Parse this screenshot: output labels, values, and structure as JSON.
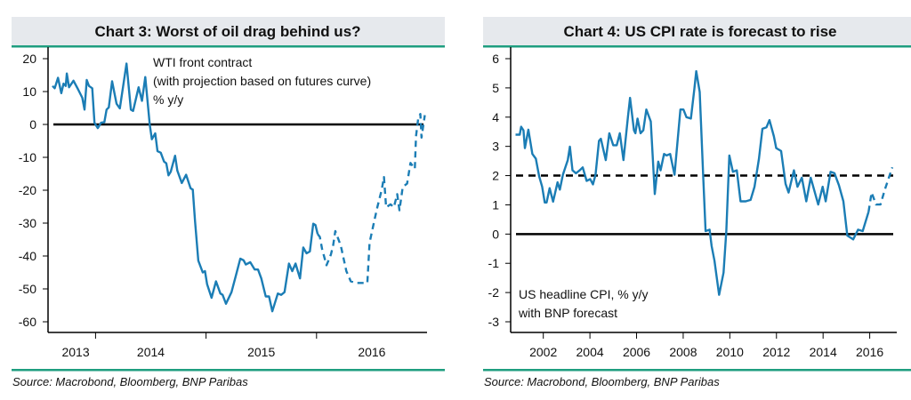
{
  "colors": {
    "series": "#1b7db5",
    "header_bg": "#e6e9ed",
    "rule": "#1f9e80",
    "axis": "#000000"
  },
  "chart_data": [
    {
      "type": "line",
      "title": "Chart 3: Worst of oil drag behind us?",
      "annotation": [
        "WTI front contract",
        "(with projection based on futures curve)",
        "% y/y"
      ],
      "source": "Source: Macrobond, Bloomberg, BNP Paribas",
      "xlim": [
        2013.57,
        2017.0
      ],
      "ylim": [
        -60,
        20
      ],
      "yticks": [
        20,
        10,
        0,
        -10,
        -20,
        -30,
        -40,
        -50,
        -60
      ],
      "ytick_labels": [
        "20",
        "10",
        "0",
        "-10",
        "-20",
        "-30",
        "-40",
        "-50",
        "-60"
      ],
      "xtick_marks": [
        2014,
        2015,
        2016
      ],
      "xtick_labels": [
        {
          "label": "2013",
          "at": 2013.82
        },
        {
          "label": "2014",
          "at": 2014.5
        },
        {
          "label": "2015",
          "at": 2015.5
        },
        {
          "label": "2016",
          "at": 2016.5
        }
      ],
      "reference_lines": [
        {
          "y": 0,
          "style": "solid"
        }
      ],
      "grid": false,
      "series": [
        {
          "style": "solid",
          "x": [
            2013.61,
            2013.63,
            2013.66,
            2013.69,
            2013.71,
            2013.73,
            2013.74,
            2013.76,
            2013.8,
            2013.84,
            2013.88,
            2013.9,
            2013.92,
            2013.94,
            2013.97,
            2013.99,
            2014.02,
            2014.05,
            2014.08,
            2014.1,
            2014.12,
            2014.15,
            2014.19,
            2014.22,
            2014.28,
            2014.32,
            2014.34,
            2014.39,
            2014.42,
            2014.45,
            2014.49,
            2014.51,
            2014.54,
            2014.56,
            2014.59,
            2014.62,
            2014.64,
            2014.66,
            2014.68,
            2014.72,
            2014.74,
            2014.78,
            2014.82,
            2014.86,
            2014.88,
            2014.9,
            2014.93,
            2014.97,
            2014.99,
            2015.01,
            2015.05,
            2015.09,
            2015.13,
            2015.15,
            2015.18,
            2015.23,
            2015.27,
            2015.31,
            2015.34,
            2015.36,
            2015.4,
            2015.44,
            2015.47,
            2015.5,
            2015.54,
            2015.57,
            2015.6,
            2015.65,
            2015.68,
            2015.71,
            2015.75,
            2015.78,
            2015.81,
            2015.85,
            2015.88,
            2015.91,
            2015.94,
            2015.97,
            2015.99,
            2016.01
          ],
          "y": [
            11.7,
            11,
            14.2,
            9.5,
            12.4,
            11.7,
            15.5,
            11.3,
            13.3,
            10.8,
            8.1,
            4.5,
            13.5,
            11.7,
            11,
            0.5,
            -1.1,
            0.5,
            0.7,
            4.5,
            5.2,
            13.1,
            6.3,
            4.9,
            18.5,
            4.5,
            4.1,
            11.3,
            7.2,
            14.4,
            0,
            -4.5,
            -2.7,
            -8.1,
            -8.6,
            -11.3,
            -11.8,
            -15.5,
            -14.4,
            -9.5,
            -14,
            -17.8,
            -15.3,
            -19.4,
            -19.8,
            -29.3,
            -41.4,
            -45,
            -44.6,
            -48.6,
            -52.7,
            -47.7,
            -51.4,
            -51.8,
            -54.5,
            -51,
            -46,
            -40.8,
            -41.3,
            -42.6,
            -41.9,
            -44.1,
            -44.1,
            -46.8,
            -52.3,
            -52.3,
            -56.8,
            -51.4,
            -51.8,
            -51,
            -42.3,
            -44.6,
            -42.3,
            -46.8,
            -37.4,
            -39.2,
            -38.6,
            -30.2,
            -30.6,
            -33.3
          ]
        },
        {
          "style": "dashed",
          "x": [
            2016.01,
            2016.03,
            2016.05,
            2016.09,
            2016.13,
            2016.15,
            2016.17,
            2016.22,
            2016.27,
            2016.31,
            2016.36,
            2016.4,
            2016.46,
            2016.48,
            2016.52,
            2016.55,
            2016.59,
            2016.61,
            2016.63,
            2016.67,
            2016.7,
            2016.73,
            2016.75,
            2016.78,
            2016.82,
            2016.85,
            2016.89,
            2016.9,
            2016.92,
            2016.94,
            2016.95,
            2016.98
          ],
          "y": [
            -33.3,
            -34.2,
            -37.8,
            -42.8,
            -39.6,
            -36.9,
            -32.4,
            -36.9,
            -44.6,
            -47.7,
            -48.2,
            -48.2,
            -48.2,
            -36,
            -29.7,
            -25.2,
            -19.8,
            -16,
            -25.2,
            -24.3,
            -25.2,
            -21.2,
            -26.1,
            -19,
            -18,
            -11.7,
            -13.5,
            -3.6,
            1.8,
            3.2,
            -4,
            2.8
          ]
        }
      ]
    },
    {
      "type": "line",
      "title": "Chart 4: US CPI rate is forecast to rise",
      "annotation": [
        "US headline CPI, % y/y",
        "with BNP forecast"
      ],
      "source": "Source: Macrobond, Bloomberg, BNP Paribas",
      "xlim": [
        2000.6,
        2017.16
      ],
      "ylim": [
        -3,
        6
      ],
      "yticks": [
        6,
        5,
        4,
        3,
        2,
        1,
        0,
        -1,
        -2,
        -3
      ],
      "ytick_labels": [
        "6",
        "5",
        "4",
        "3",
        "2",
        "1",
        "0",
        "-1",
        "-2",
        "-3"
      ],
      "xtick_marks": [
        2002,
        2004,
        2006,
        2008,
        2010,
        2012,
        2014,
        2016
      ],
      "xtick_labels": [
        {
          "label": "2002",
          "at": 2002
        },
        {
          "label": "2004",
          "at": 2004
        },
        {
          "label": "2006",
          "at": 2006
        },
        {
          "label": "2008",
          "at": 2008
        },
        {
          "label": "2010",
          "at": 2010
        },
        {
          "label": "2012",
          "at": 2012
        },
        {
          "label": "2014",
          "at": 2014
        },
        {
          "label": "2016",
          "at": 2016
        }
      ],
      "reference_lines": [
        {
          "y": 0,
          "style": "solid"
        },
        {
          "y": 2,
          "style": "dashed"
        }
      ],
      "grid": false,
      "series": [
        {
          "style": "solid",
          "x": [
            2000.81,
            2000.99,
            2001.05,
            2001.15,
            2001.21,
            2001.36,
            2001.53,
            2001.68,
            2001.82,
            2001.95,
            2002.06,
            2002.14,
            2002.27,
            2002.42,
            2002.61,
            2002.71,
            2002.84,
            2003.05,
            2003.14,
            2003.25,
            2003.4,
            2003.56,
            2003.69,
            2003.86,
            2004.01,
            2004.13,
            2004.24,
            2004.39,
            2004.47,
            2004.68,
            2004.83,
            2005.0,
            2005.15,
            2005.28,
            2005.44,
            2005.63,
            2005.72,
            2005.89,
            2005.95,
            2006.04,
            2006.17,
            2006.29,
            2006.42,
            2006.61,
            2006.78,
            2006.93,
            2007.03,
            2007.18,
            2007.29,
            2007.44,
            2007.63,
            2007.88,
            2008.01,
            2008.14,
            2008.33,
            2008.48,
            2008.56,
            2008.71,
            2008.86,
            2008.96,
            2009.13,
            2009.22,
            2009.34,
            2009.41,
            2009.54,
            2009.73,
            2009.85,
            2009.98,
            2010.13,
            2010.3,
            2010.46,
            2010.68,
            2010.89,
            2011.06,
            2011.25,
            2011.4,
            2011.57,
            2011.7,
            2011.89,
            2011.99,
            2012.2,
            2012.39,
            2012.52,
            2012.75,
            2012.9,
            2013.09,
            2013.28,
            2013.47,
            2013.79,
            2013.98,
            2014.11,
            2014.32,
            2014.49,
            2014.68,
            2014.87,
            2015.04,
            2015.29,
            2015.5,
            2015.7,
            2015.95
          ],
          "y": [
            3.4,
            3.4,
            3.67,
            3.55,
            2.94,
            3.57,
            2.74,
            2.58,
            1.98,
            1.62,
            1.08,
            1.08,
            1.57,
            1.11,
            1.77,
            1.52,
            2.03,
            2.53,
            2.99,
            2.18,
            2.08,
            2.18,
            2.28,
            1.82,
            1.88,
            1.7,
            2.03,
            3.19,
            3.26,
            2.53,
            3.45,
            3.04,
            3.04,
            3.45,
            2.53,
            4.0,
            4.66,
            3.55,
            3.45,
            3.95,
            3.45,
            3.55,
            4.26,
            3.85,
            1.37,
            2.48,
            2.18,
            2.74,
            2.69,
            2.74,
            2.03,
            4.26,
            4.26,
            4.0,
            3.95,
            4.97,
            5.57,
            4.86,
            1.93,
            0.1,
            0.15,
            -0.41,
            -0.91,
            -1.32,
            -2.08,
            -1.32,
            0.1,
            2.69,
            2.13,
            2.18,
            1.12,
            1.12,
            1.17,
            1.62,
            2.58,
            3.6,
            3.65,
            3.9,
            3.34,
            2.94,
            2.84,
            1.72,
            1.42,
            2.18,
            1.62,
            1.93,
            1.12,
            1.93,
            1.01,
            1.62,
            1.12,
            2.13,
            2.08,
            1.67,
            1.12,
            -0.05,
            -0.18,
            0.15,
            0.1,
            0.76
          ]
        },
        {
          "style": "dashed",
          "x": [
            2015.95,
            2016.08,
            2016.27,
            2016.46,
            2016.65,
            2016.82,
            2016.97
          ],
          "y": [
            0.76,
            1.42,
            1.01,
            1.01,
            1.52,
            1.93,
            2.28
          ]
        }
      ]
    }
  ]
}
